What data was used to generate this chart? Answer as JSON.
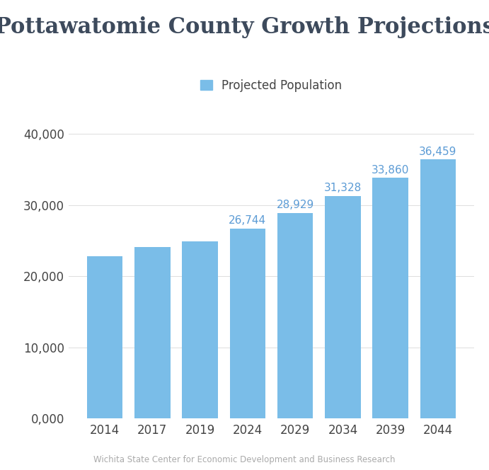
{
  "title": "Pottawatomie County Growth Projections",
  "categories": [
    "2014",
    "2017",
    "2019",
    "2024",
    "2029",
    "2034",
    "2039",
    "2044"
  ],
  "values": [
    22800,
    24100,
    24900,
    26744,
    28929,
    31328,
    33860,
    36459
  ],
  "bar_color": "#7abde8",
  "annotation_color": "#5b9bd5",
  "title_color": "#3d4a5c",
  "tick_color": "#444444",
  "grid_color": "#dddddd",
  "background_color": "#ffffff",
  "legend_label": "Projected Population",
  "footer_text": "Wichita State Center for Economic Development and Business Research",
  "ylim": [
    0,
    43000
  ],
  "yticks": [
    0,
    10000,
    20000,
    30000,
    40000
  ],
  "ytick_labels": [
    "0,000",
    "10,000",
    "20,000",
    "30,000",
    "40,000"
  ],
  "annotated_bars": [
    3,
    4,
    5,
    6,
    7
  ],
  "title_fontsize": 22,
  "tick_fontsize": 12,
  "annotation_fontsize": 11,
  "legend_fontsize": 12,
  "footer_fontsize": 8.5
}
